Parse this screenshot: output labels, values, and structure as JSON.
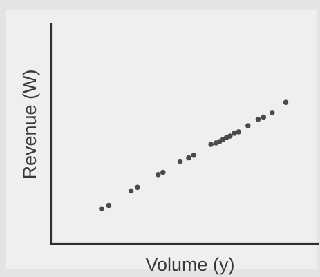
{
  "chart_data": {
    "type": "scatter",
    "title": "",
    "xlabel": "Volume (y)",
    "ylabel": "Revenue (W)",
    "xlim": [
      0,
      100
    ],
    "ylim": [
      0,
      100
    ],
    "grid": false,
    "ticks": false,
    "series": [
      {
        "color": "#4a4a4a",
        "points": [
          {
            "x": 18.8,
            "y": 15.9
          },
          {
            "x": 21.5,
            "y": 17.4
          },
          {
            "x": 29.8,
            "y": 24.0
          },
          {
            "x": 32.2,
            "y": 25.6
          },
          {
            "x": 39.9,
            "y": 31.4
          },
          {
            "x": 41.7,
            "y": 32.4
          },
          {
            "x": 48.1,
            "y": 37.4
          },
          {
            "x": 51.3,
            "y": 39.0
          },
          {
            "x": 53.2,
            "y": 40.2
          },
          {
            "x": 59.6,
            "y": 45.1
          },
          {
            "x": 61.5,
            "y": 45.8
          },
          {
            "x": 62.8,
            "y": 46.4
          },
          {
            "x": 64.1,
            "y": 47.4
          },
          {
            "x": 65.4,
            "y": 48.3
          },
          {
            "x": 66.7,
            "y": 48.9
          },
          {
            "x": 68.3,
            "y": 50.2
          },
          {
            "x": 69.9,
            "y": 50.8
          },
          {
            "x": 73.4,
            "y": 53.6
          },
          {
            "x": 77.2,
            "y": 56.5
          },
          {
            "x": 79.2,
            "y": 57.5
          },
          {
            "x": 82.4,
            "y": 59.6
          },
          {
            "x": 87.5,
            "y": 64.2
          }
        ]
      }
    ]
  }
}
